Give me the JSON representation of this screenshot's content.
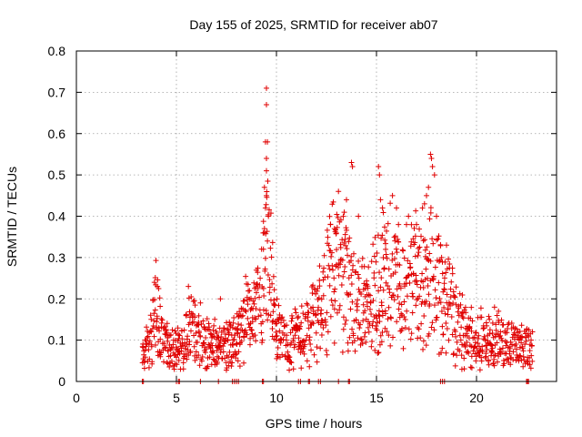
{
  "chart_data": {
    "type": "scatter",
    "title": "Day 155 of 2025, SRMTID for receiver ab07",
    "xlabel": "GPS time / hours",
    "ylabel": "SRMTID / TECUs",
    "xlim": [
      0,
      24
    ],
    "ylim": [
      0,
      0.8
    ],
    "xticks": [
      "0",
      "5",
      "10",
      "15",
      "20"
    ],
    "yticks": [
      "0",
      "0.1",
      "0.2",
      "0.3",
      "0.4",
      "0.5",
      "0.6",
      "0.7",
      "0.8"
    ],
    "grid": true,
    "marker": "plus",
    "color": "#e00000",
    "series": [
      {
        "name": "SRMTID",
        "profile": [
          [
            3.3,
            0.07
          ],
          [
            3.6,
            0.08
          ],
          [
            3.9,
            0.15
          ],
          [
            4.0,
            0.2
          ],
          [
            4.3,
            0.09
          ],
          [
            4.8,
            0.08
          ],
          [
            5.0,
            0.07
          ],
          [
            5.5,
            0.12
          ],
          [
            5.8,
            0.15
          ],
          [
            6.2,
            0.1
          ],
          [
            6.6,
            0.11
          ],
          [
            7.0,
            0.08
          ],
          [
            7.5,
            0.09
          ],
          [
            8.0,
            0.1
          ],
          [
            8.5,
            0.15
          ],
          [
            9.0,
            0.2
          ],
          [
            9.5,
            0.3
          ],
          [
            9.7,
            0.28
          ],
          [
            10.0,
            0.12
          ],
          [
            10.5,
            0.1
          ],
          [
            11.0,
            0.11
          ],
          [
            11.5,
            0.12
          ],
          [
            12.0,
            0.15
          ],
          [
            12.4,
            0.2
          ],
          [
            12.8,
            0.28
          ],
          [
            13.2,
            0.26
          ],
          [
            13.7,
            0.24
          ],
          [
            14.2,
            0.18
          ],
          [
            14.6,
            0.17
          ],
          [
            15.0,
            0.22
          ],
          [
            15.5,
            0.25
          ],
          [
            16.0,
            0.25
          ],
          [
            16.5,
            0.22
          ],
          [
            17.0,
            0.24
          ],
          [
            17.5,
            0.27
          ],
          [
            18.0,
            0.23
          ],
          [
            18.5,
            0.2
          ],
          [
            19.0,
            0.15
          ],
          [
            19.5,
            0.11
          ],
          [
            20.0,
            0.1
          ],
          [
            20.5,
            0.11
          ],
          [
            21.0,
            0.1
          ],
          [
            21.5,
            0.09
          ],
          [
            22.0,
            0.08
          ],
          [
            22.5,
            0.08
          ],
          [
            22.8,
            0.07
          ]
        ],
        "peaks": [
          [
            3.9,
            0.24
          ],
          [
            4.05,
            0.23
          ],
          [
            5.6,
            0.23
          ],
          [
            6.2,
            0.19
          ],
          [
            7.2,
            0.2
          ],
          [
            9.5,
            0.71
          ],
          [
            9.5,
            0.67
          ],
          [
            9.45,
            0.58
          ],
          [
            9.55,
            0.58
          ],
          [
            9.5,
            0.54
          ],
          [
            9.5,
            0.51
          ],
          [
            9.4,
            0.47
          ],
          [
            9.5,
            0.45
          ],
          [
            9.45,
            0.42
          ],
          [
            9.6,
            0.4
          ],
          [
            9.4,
            0.37
          ],
          [
            9.55,
            0.34
          ],
          [
            9.35,
            0.32
          ],
          [
            12.7,
            0.38
          ],
          [
            12.9,
            0.37
          ],
          [
            13.1,
            0.46
          ],
          [
            13.5,
            0.44
          ],
          [
            13.75,
            0.53
          ],
          [
            13.8,
            0.52
          ],
          [
            14.1,
            0.4
          ],
          [
            15.1,
            0.52
          ],
          [
            15.15,
            0.5
          ],
          [
            15.2,
            0.44
          ],
          [
            15.3,
            0.42
          ],
          [
            15.8,
            0.45
          ],
          [
            16.0,
            0.42
          ],
          [
            16.1,
            0.38
          ],
          [
            16.5,
            0.38
          ],
          [
            16.6,
            0.4
          ],
          [
            17.0,
            0.38
          ],
          [
            17.3,
            0.42
          ],
          [
            17.7,
            0.55
          ],
          [
            17.75,
            0.54
          ],
          [
            17.8,
            0.52
          ],
          [
            17.9,
            0.5
          ],
          [
            17.6,
            0.47
          ],
          [
            17.5,
            0.45
          ],
          [
            17.4,
            0.43
          ],
          [
            18.0,
            0.4
          ],
          [
            18.5,
            0.33
          ],
          [
            20.9,
            0.18
          ],
          [
            21.1,
            0.17
          ]
        ],
        "zeros": [
          3.3,
          3.35,
          5.0,
          5.1,
          5.15,
          6.2,
          7.1,
          7.8,
          7.9,
          8.0,
          8.1,
          9.3,
          9.35,
          11.1,
          11.2,
          11.6,
          11.65,
          12.1,
          12.2,
          13.1,
          13.6,
          13.65,
          18.2,
          18.3,
          18.4,
          22.5,
          22.55,
          22.6
        ]
      }
    ]
  }
}
